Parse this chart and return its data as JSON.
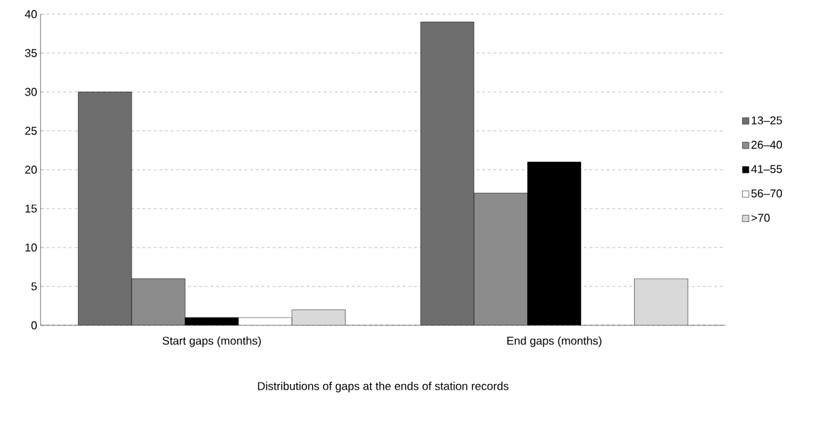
{
  "chart_data": {
    "type": "bar",
    "xlabel": "Distributions of gaps at the ends of station records",
    "categories": [
      "Start gaps (months)",
      "End gaps (months)"
    ],
    "series": [
      {
        "name": "13–25",
        "color": "#6e6e6e",
        "values": [
          30,
          39
        ]
      },
      {
        "name": "26–40",
        "color": "#8c8c8c",
        "values": [
          6,
          17
        ]
      },
      {
        "name": "41–55",
        "color": "#000000",
        "values": [
          1,
          21
        ]
      },
      {
        "name": "56–70",
        "color": "#ffffff",
        "values": [
          1,
          null
        ]
      },
      {
        "name": ">70",
        "color": "#d9d9d9",
        "values": [
          2,
          6
        ]
      }
    ],
    "ylim": [
      0,
      40
    ],
    "yticks": [
      0,
      5,
      10,
      15,
      20,
      25,
      30,
      35,
      40
    ],
    "grid": "y",
    "legend": "right"
  }
}
